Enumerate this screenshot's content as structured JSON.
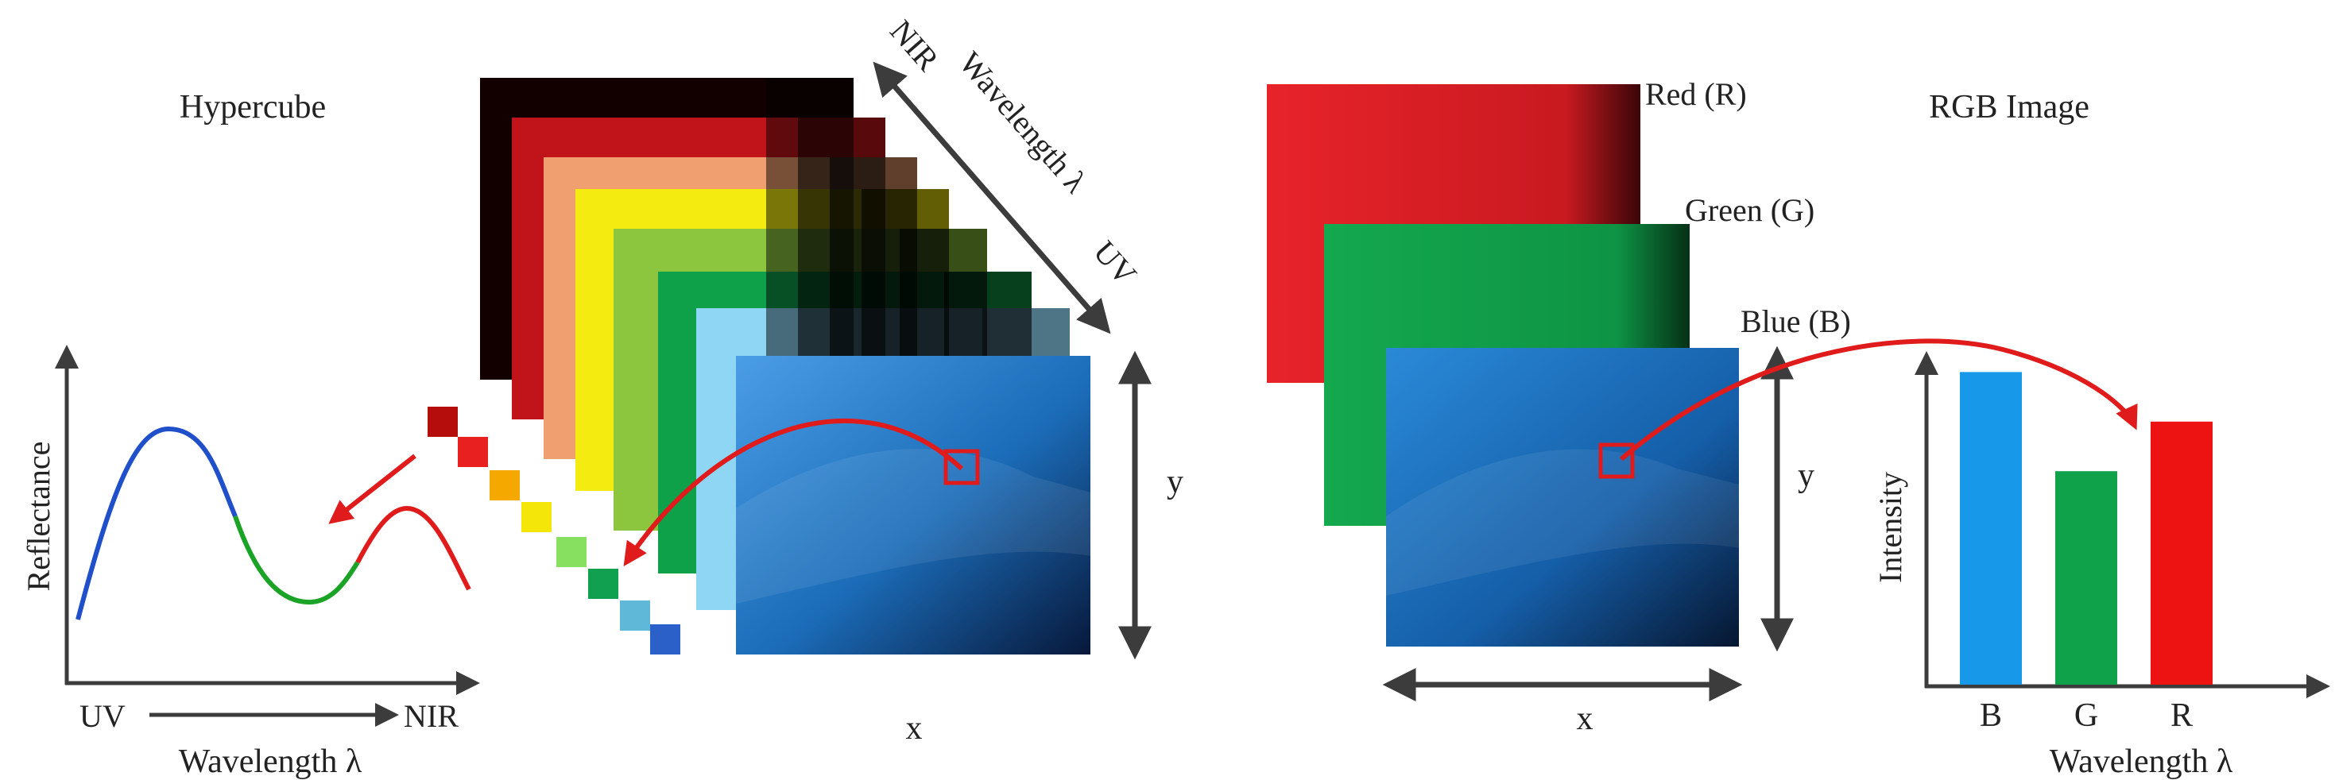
{
  "hypercube": {
    "title": "Hypercube",
    "axis_x": "x",
    "axis_y": "y",
    "wavelength_axis": {
      "label": "Wavelength λ",
      "start_label": "NIR",
      "end_label": "UV"
    },
    "band_colors": [
      "#120000",
      "#c0141a",
      "#f0a070",
      "#f4ec10",
      "#8cc63e",
      "#0fa04a",
      "#8fd6f5"
    ],
    "pixel_spectrum_colors": [
      "#b50c0c",
      "#e82020",
      "#f5a800",
      "#f5e60a",
      "#88e060",
      "#10a050",
      "#60b8d8",
      "#2a60c8"
    ]
  },
  "spectrum_plot": {
    "ylabel": "Reflectance",
    "xlabel": "Wavelength λ",
    "x_start_label": "UV",
    "x_end_label": "NIR",
    "segment_colors": [
      "#1f4fc9",
      "#1aa324",
      "#e01b1b"
    ]
  },
  "rgb_image": {
    "title": "RGB Image",
    "channels": [
      {
        "label": "Red (R)",
        "color": "#e0232a"
      },
      {
        "label": "Green (G)",
        "color": "#12a14a"
      },
      {
        "label": "Blue (B)",
        "color": "#1a7fc8"
      }
    ],
    "axis_x": "x",
    "axis_y": "y"
  },
  "chart_data": {
    "type": "bar",
    "categories": [
      "B",
      "G",
      "R"
    ],
    "values": [
      0.82,
      0.56,
      0.69
    ],
    "colors": [
      "#1798e8",
      "#10a14b",
      "#ee1313"
    ],
    "ylim": [
      0,
      1
    ],
    "xlabel": "Wavelength λ",
    "ylabel": "Intensity",
    "grid": false
  },
  "colors": {
    "arrow_red": "#e01b1b",
    "axis_dark": "#3c3c3c"
  }
}
